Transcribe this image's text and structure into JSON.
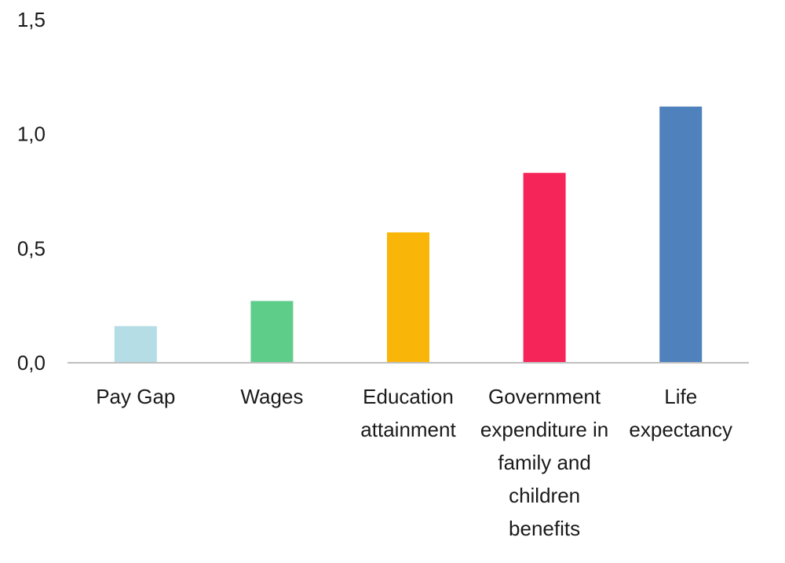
{
  "chart_data": {
    "type": "bar",
    "title": "",
    "xlabel": "",
    "ylabel": "",
    "ylim": [
      0,
      1.5
    ],
    "yticks": [
      "0,0",
      "0,5",
      "1,0",
      "1,5"
    ],
    "grid": false,
    "categories": [
      [
        "Pay Gap"
      ],
      [
        "Wages"
      ],
      [
        "Education",
        "attainment"
      ],
      [
        "Government",
        "expenditure in",
        "family and",
        "children",
        "benefits"
      ],
      [
        "Life",
        "expectancy"
      ]
    ],
    "values": [
      0.16,
      0.27,
      0.57,
      0.83,
      1.12
    ],
    "colors": [
      "#b4dde6",
      "#5fcd8a",
      "#fab608",
      "#f5255a",
      "#4f81bd"
    ]
  }
}
